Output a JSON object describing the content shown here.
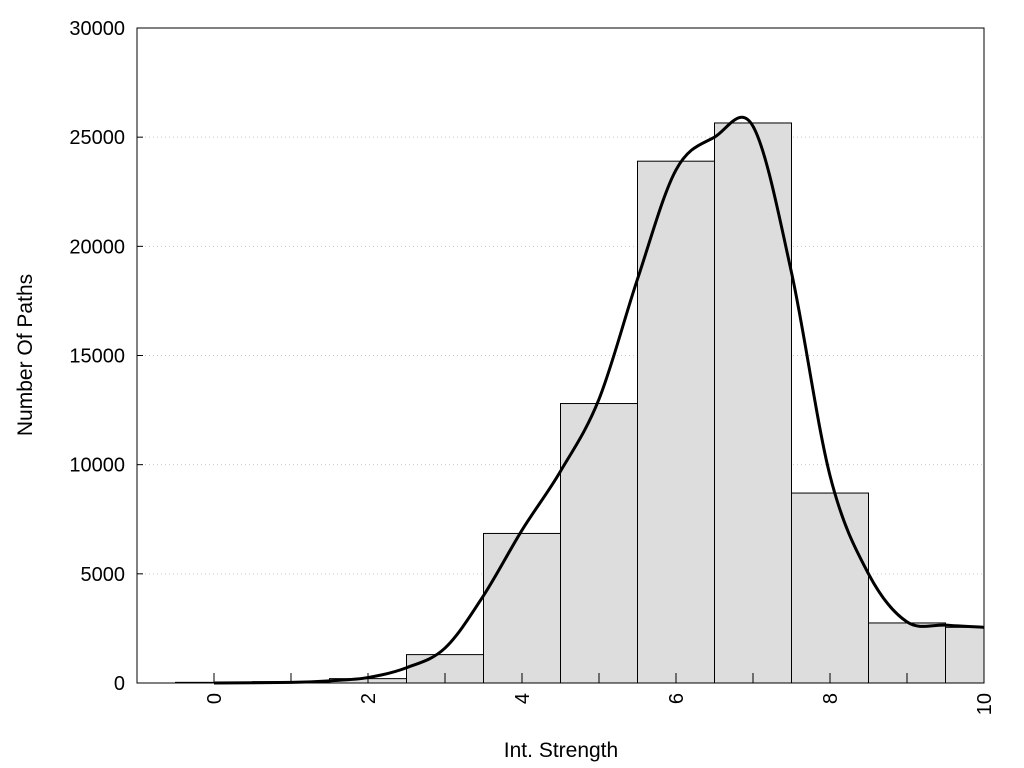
{
  "chart_data": {
    "type": "bar",
    "title": "",
    "xlabel": "Int. Strength",
    "ylabel": "Number Of Paths",
    "xlim": [
      -1,
      10
    ],
    "ylim": [
      0,
      30000
    ],
    "xticks": [
      "0",
      "2",
      "4",
      "6",
      "8",
      "10"
    ],
    "yticks": [
      "0",
      "5000",
      "10000",
      "15000",
      "20000",
      "25000",
      "30000"
    ],
    "grid": "horizontal-dotted",
    "bars": {
      "x": [
        0,
        1,
        2,
        3,
        4,
        5,
        6,
        7,
        8,
        9,
        10
      ],
      "values": [
        30,
        60,
        200,
        1300,
        6850,
        12800,
        23900,
        25650,
        8700,
        2750,
        2550
      ],
      "fill_color": "#dddddd",
      "edge_color": "#000000"
    },
    "curve": {
      "x": [
        0,
        1,
        1.5,
        2,
        2.5,
        3,
        3.5,
        4,
        4.5,
        5,
        5.5,
        6,
        6.5,
        7,
        7.5,
        8,
        8.5,
        9,
        9.5,
        10
      ],
      "y": [
        0,
        30,
        100,
        250,
        700,
        1600,
        4000,
        7000,
        9700,
        13000,
        18500,
        23500,
        25000,
        25500,
        18800,
        9500,
        5000,
        2800,
        2650,
        2550
      ],
      "color": "#000000"
    }
  }
}
